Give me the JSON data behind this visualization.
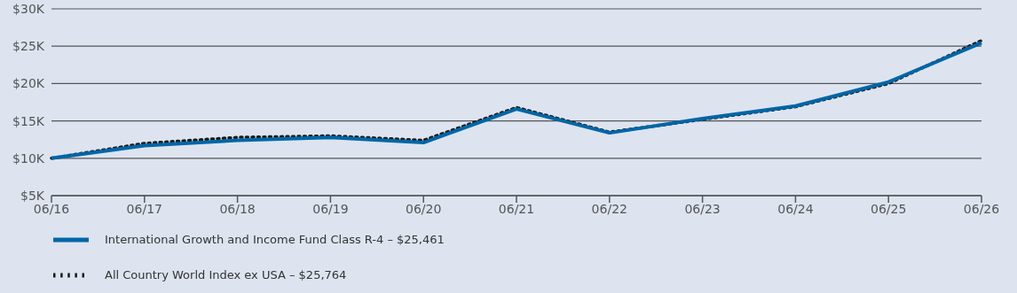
{
  "chart_data": {
    "type": "line",
    "categories": [
      "06/16",
      "06/17",
      "06/18",
      "06/19",
      "06/20",
      "06/21",
      "06/22",
      "06/23",
      "06/24",
      "06/25",
      "06/26"
    ],
    "series": [
      {
        "name": "International Growth and Income Fund Class R-4 – $25,461",
        "color": "#0066a6",
        "line_style": "solid",
        "values": [
          10000,
          11700,
          12400,
          12800,
          12100,
          16600,
          13400,
          15300,
          17000,
          20200,
          25461
        ]
      },
      {
        "name": "All Country World Index ex USA – $25,764",
        "color": "#1a1a1a",
        "line_style": "dotted",
        "values": [
          10000,
          12000,
          12800,
          13000,
          12400,
          16800,
          13500,
          15200,
          16900,
          20000,
          25764
        ]
      }
    ],
    "ylim": [
      5000,
      30000
    ],
    "yticks": [
      {
        "value": 5000,
        "label": "$5K"
      },
      {
        "value": 10000,
        "label": "$10K"
      },
      {
        "value": 15000,
        "label": "$15K"
      },
      {
        "value": 20000,
        "label": "$20K"
      },
      {
        "value": 25000,
        "label": "$25K"
      },
      {
        "value": 30000,
        "label": "$30K"
      }
    ],
    "grid": "y",
    "legend": "bottom",
    "marker": "none"
  }
}
